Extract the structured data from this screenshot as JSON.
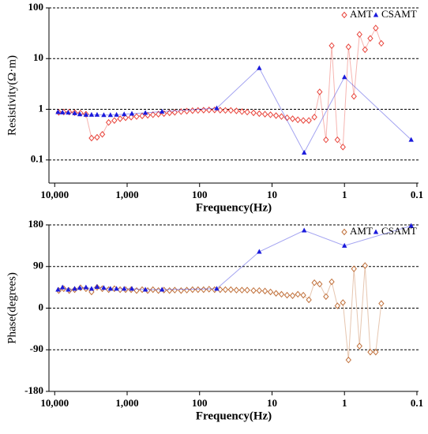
{
  "chart_data": [
    {
      "type": "line",
      "xlabel": "Frequency(Hz)",
      "ylabel": "Resistivity(Ω·m)",
      "xscale": "log",
      "yscale": "log",
      "xlim": [
        12000,
        0.095
      ],
      "ylim": [
        0.035,
        100
      ],
      "xticks": [
        {
          "value": 10000,
          "label": "10,000"
        },
        {
          "value": 1000,
          "label": "1,000"
        },
        100,
        10,
        1,
        0.1
      ],
      "yticks": [
        100,
        10,
        1,
        0.1
      ],
      "grid": true,
      "legend": "upper right",
      "series": [
        {
          "name": "AMT",
          "color": "#e8453c",
          "marker": "diamond",
          "x": [
            8800,
            7500,
            6300,
            5300,
            4400,
            3700,
            3100,
            2600,
            2200,
            1800,
            1500,
            1250,
            1050,
            880,
            740,
            620,
            520,
            440,
            370,
            310,
            260,
            220,
            180,
            150,
            125,
            105,
            88,
            74,
            62,
            52,
            44,
            37,
            31,
            26,
            22,
            18,
            15,
            12.5,
            10.5,
            8.8,
            7.4,
            6.2,
            5.2,
            4.4,
            3.7,
            3.1,
            2.6,
            2.2,
            1.8,
            1.5,
            1.25,
            1.05,
            0.88,
            0.74,
            0.62,
            0.52,
            0.44,
            0.37,
            0.31
          ],
          "values": [
            0.87,
            0.88,
            0.88,
            0.86,
            0.84,
            0.8,
            0.27,
            0.28,
            0.32,
            0.55,
            0.6,
            0.65,
            0.68,
            0.7,
            0.72,
            0.74,
            0.76,
            0.78,
            0.8,
            0.82,
            0.85,
            0.87,
            0.9,
            0.92,
            0.94,
            0.95,
            0.96,
            0.97,
            0.97,
            0.96,
            0.95,
            0.95,
            0.93,
            0.9,
            0.88,
            0.85,
            0.82,
            0.8,
            0.78,
            0.75,
            0.72,
            0.68,
            0.65,
            0.62,
            0.6,
            0.6,
            0.7,
            2.2,
            0.25,
            18,
            0.25,
            0.18,
            17,
            1.8,
            30,
            15,
            25,
            40,
            20
          ]
        },
        {
          "name": "CSAMT",
          "color": "#1a1adc",
          "marker": "triangle",
          "x": [
            9000,
            7800,
            6500,
            5300,
            4500,
            3700,
            3100,
            2600,
            2100,
            1700,
            1400,
            1100,
            860,
            560,
            330,
            58,
            15,
            3.6,
            1.0,
            0.12
          ],
          "values": [
            0.88,
            0.87,
            0.86,
            0.84,
            0.8,
            0.78,
            0.78,
            0.78,
            0.77,
            0.77,
            0.78,
            0.8,
            0.82,
            0.85,
            0.9,
            1.05,
            6.5,
            0.14,
            4.3,
            0.25
          ]
        }
      ]
    },
    {
      "type": "line",
      "xlabel": "Frequency(Hz)",
      "ylabel": "Phase(degrees)",
      "xscale": "log",
      "yscale": "linear",
      "xlim": [
        12000,
        0.095
      ],
      "ylim": [
        -180,
        180
      ],
      "xticks": [
        {
          "value": 10000,
          "label": "10,000"
        },
        {
          "value": 1000,
          "label": "1,000"
        },
        100,
        10,
        1,
        0.1
      ],
      "yticks": [
        180,
        90,
        0,
        -90,
        -180
      ],
      "grid": true,
      "legend": "upper right",
      "series": [
        {
          "name": "AMT",
          "color": "#c0703a",
          "marker": "diamond",
          "x": [
            8800,
            7500,
            6300,
            5300,
            4400,
            3700,
            3100,
            2600,
            2200,
            1800,
            1500,
            1250,
            1050,
            880,
            740,
            620,
            520,
            440,
            370,
            310,
            260,
            220,
            180,
            150,
            125,
            105,
            88,
            74,
            62,
            52,
            44,
            37,
            31,
            26,
            22,
            18,
            15,
            12.5,
            10.5,
            8.8,
            7.4,
            6.2,
            5.2,
            4.4,
            3.7,
            3.1,
            2.6,
            2.2,
            1.8,
            1.5,
            1.25,
            1.05,
            0.88,
            0.74,
            0.62,
            0.52,
            0.44,
            0.37,
            0.31
          ],
          "values": [
            38,
            42,
            38,
            40,
            44,
            42,
            35,
            45,
            42,
            40,
            42,
            40,
            40,
            40,
            38,
            40,
            38,
            40,
            38,
            39,
            38,
            39,
            38,
            39,
            40,
            40,
            40,
            41,
            40,
            40,
            40,
            40,
            39,
            39,
            39,
            38,
            38,
            37,
            35,
            32,
            30,
            28,
            27,
            30,
            28,
            18,
            55,
            52,
            25,
            57,
            5,
            12,
            -112,
            85,
            -82,
            92,
            -95,
            -95,
            10
          ]
        },
        {
          "name": "CSAMT",
          "color": "#1a1adc",
          "marker": "triangle",
          "x": [
            9000,
            7800,
            6500,
            5300,
            4500,
            3700,
            3100,
            2600,
            2100,
            1700,
            1400,
            1100,
            860,
            560,
            330,
            58,
            15,
            3.6,
            1.0,
            0.12
          ],
          "values": [
            40,
            45,
            40,
            42,
            44,
            45,
            42,
            46,
            44,
            42,
            42,
            42,
            42,
            40,
            40,
            42,
            122,
            168,
            135,
            178
          ]
        }
      ]
    }
  ]
}
